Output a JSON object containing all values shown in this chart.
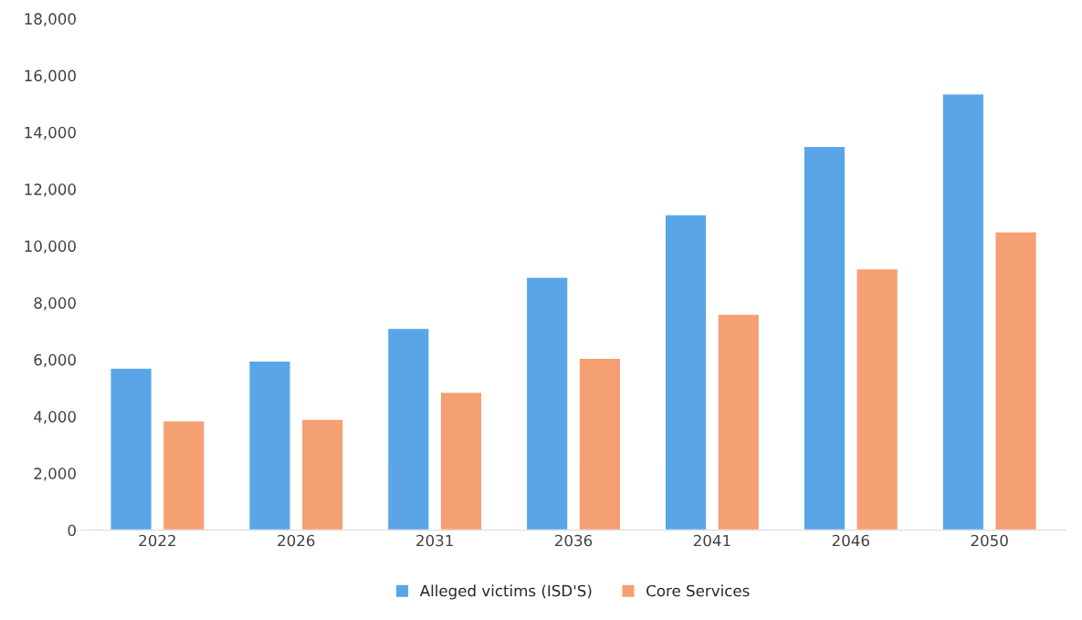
{
  "chart_data": {
    "type": "bar",
    "categories": [
      "2022",
      "2026",
      "2031",
      "2036",
      "2041",
      "2046",
      "2050"
    ],
    "series": [
      {
        "name": "Alleged victims (ISD'S)",
        "color": "#5aa5e8",
        "values": [
          5700,
          5950,
          7100,
          8900,
          11100,
          13500,
          15350
        ]
      },
      {
        "name": "Core Services",
        "color": "#f4a072",
        "values": [
          3850,
          3900,
          4850,
          6050,
          7600,
          9200,
          10500
        ]
      }
    ],
    "ylim": [
      0,
      18000
    ],
    "yticks": [
      {
        "value": 0,
        "label": "0"
      },
      {
        "value": 2000,
        "label": "2,000"
      },
      {
        "value": 4000,
        "label": "4,000"
      },
      {
        "value": 6000,
        "label": "6,000"
      },
      {
        "value": 8000,
        "label": "8,000"
      },
      {
        "value": 10000,
        "label": "10,000"
      },
      {
        "value": 12000,
        "label": "12,000"
      },
      {
        "value": 14000,
        "label": "14,000"
      },
      {
        "value": 16000,
        "label": "16,000"
      },
      {
        "value": 18000,
        "label": "18,000"
      }
    ],
    "grid": false,
    "legend": "bottom"
  }
}
